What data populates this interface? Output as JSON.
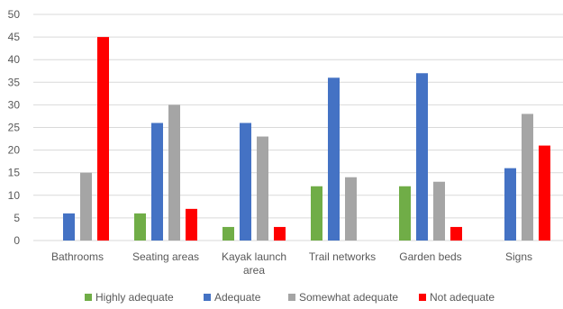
{
  "chart_data": {
    "type": "bar",
    "categories": [
      "Bathrooms",
      "Seating areas",
      "Kayak launch area",
      "Trail networks",
      "Garden beds",
      "Signs"
    ],
    "category_label_lines": [
      [
        "Bathrooms"
      ],
      [
        "Seating areas"
      ],
      [
        "Kayak launch",
        "area"
      ],
      [
        "Trail networks"
      ],
      [
        "Garden beds"
      ],
      [
        "Signs"
      ]
    ],
    "series": [
      {
        "name": "Highly adequate",
        "color": "#70AD47",
        "values": [
          0,
          6,
          3,
          12,
          12,
          0
        ]
      },
      {
        "name": "Adequate",
        "color": "#4472C4",
        "values": [
          6,
          26,
          26,
          36,
          37,
          16
        ]
      },
      {
        "name": "Somewhat adequate",
        "color": "#A5A5A5",
        "values": [
          15,
          30,
          23,
          14,
          13,
          28
        ]
      },
      {
        "name": "Not adequate",
        "color": "#FF0000",
        "values": [
          45,
          7,
          3,
          0,
          3,
          21
        ]
      }
    ],
    "ylim": [
      0,
      50
    ],
    "yticks": [
      0,
      5,
      10,
      15,
      20,
      25,
      30,
      35,
      40,
      45,
      50
    ],
    "title": "",
    "xlabel": "",
    "ylabel": "",
    "grid": true,
    "legend_position": "bottom"
  },
  "colors": {
    "gridline": "#D9D9D9",
    "axis_text": "#595959"
  }
}
